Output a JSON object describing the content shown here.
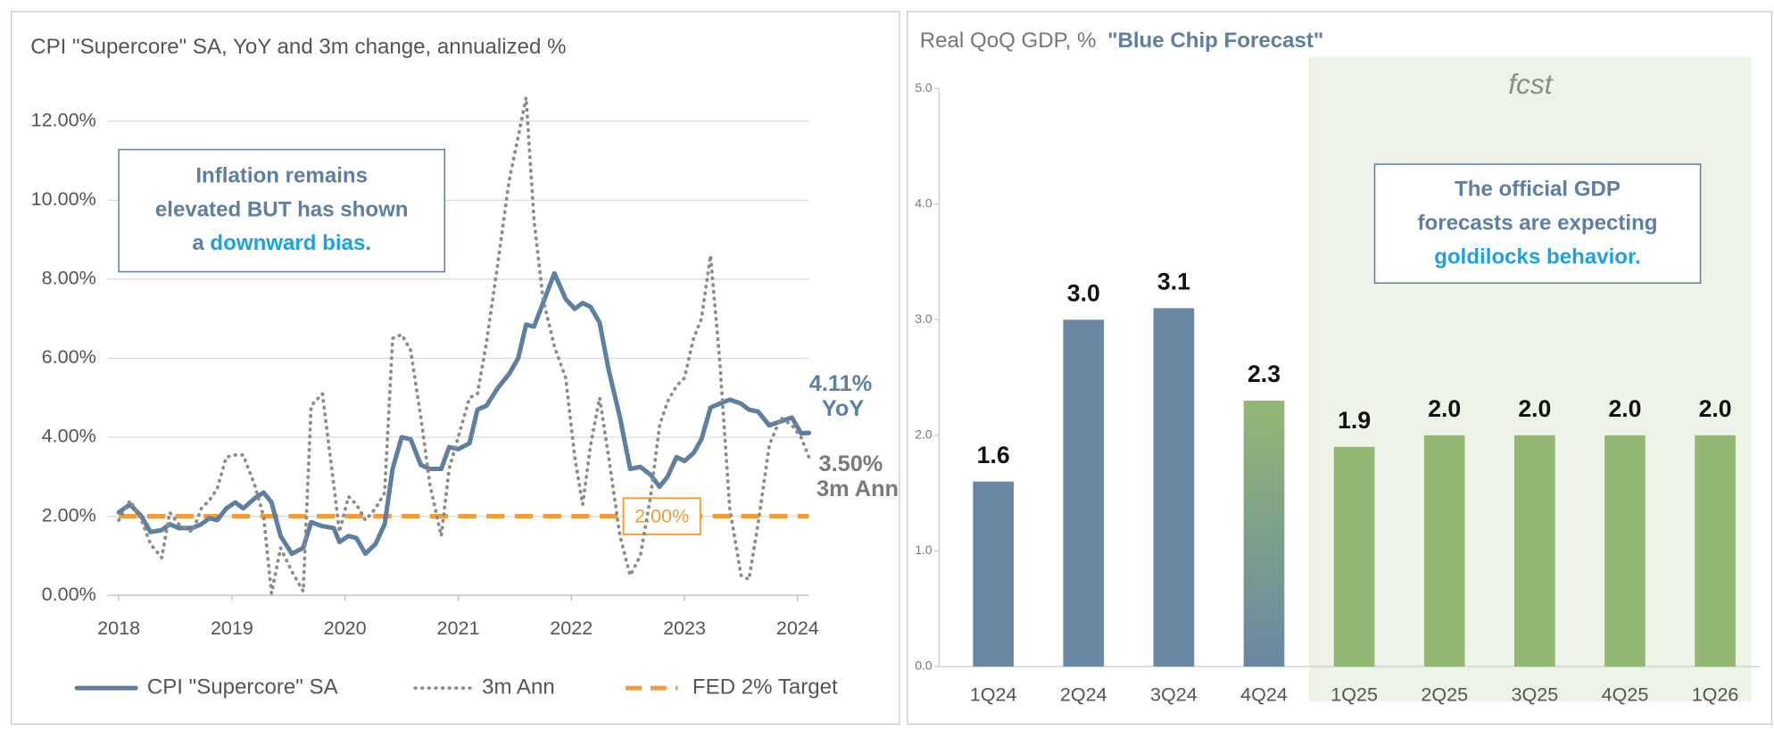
{
  "chart_data": [
    {
      "type": "line",
      "title": "CPI \"Supercore\" SA, YoY and 3m change, annualized %",
      "x": [
        2018.0,
        2018.1,
        2018.2,
        2018.28,
        2018.38,
        2018.45,
        2018.53,
        2018.65,
        2018.73,
        2018.8,
        2018.87,
        2018.95,
        2019.03,
        2019.1,
        2019.2,
        2019.28,
        2019.35,
        2019.43,
        2019.53,
        2019.63,
        2019.7,
        2019.8,
        2019.9,
        2019.95,
        2020.03,
        2020.1,
        2020.18,
        2020.27,
        2020.35,
        2020.42,
        2020.5,
        2020.58,
        2020.67,
        2020.75,
        2020.85,
        2020.92,
        2021.0,
        2021.1,
        2021.17,
        2021.25,
        2021.35,
        2021.45,
        2021.53,
        2021.6,
        2021.67,
        2021.75,
        2021.85,
        2021.95,
        2022.03,
        2022.1,
        2022.17,
        2022.25,
        2022.33,
        2022.43,
        2022.52,
        2022.61,
        2022.7,
        2022.78,
        2022.85,
        2022.93,
        2023.0,
        2023.08,
        2023.15,
        2023.23,
        2023.31,
        2023.4,
        2023.5,
        2023.57,
        2023.65,
        2023.75,
        2023.85,
        2023.95,
        2024.03,
        2024.1
      ],
      "series": [
        {
          "name": "CPI \"Supercore\" SA",
          "color": "#5f7fa0",
          "style": "solid",
          "end_label": "4.11%",
          "end_caption": "YoY",
          "values": [
            2.1,
            2.3,
            2.0,
            1.6,
            1.65,
            1.8,
            1.7,
            1.7,
            1.8,
            1.95,
            1.9,
            2.2,
            2.35,
            2.2,
            2.45,
            2.6,
            2.35,
            1.5,
            1.05,
            1.2,
            1.85,
            1.75,
            1.7,
            1.35,
            1.5,
            1.45,
            1.05,
            1.3,
            1.8,
            3.2,
            4.0,
            3.95,
            3.3,
            3.2,
            3.2,
            3.75,
            3.7,
            3.85,
            4.7,
            4.8,
            5.25,
            5.6,
            6.0,
            6.85,
            6.8,
            7.4,
            8.15,
            7.5,
            7.25,
            7.4,
            7.3,
            6.9,
            5.7,
            4.5,
            3.2,
            3.25,
            3.05,
            2.75,
            3.0,
            3.5,
            3.4,
            3.6,
            3.95,
            4.75,
            4.85,
            4.95,
            4.85,
            4.7,
            4.65,
            4.3,
            4.4,
            4.5,
            4.1,
            4.11
          ]
        },
        {
          "name": "3m Ann",
          "color": "#8c8c8c",
          "style": "dotted",
          "end_label": "3.50%",
          "end_caption": "3m Ann",
          "values": [
            1.9,
            2.4,
            1.9,
            1.3,
            0.95,
            2.1,
            1.8,
            1.6,
            2.2,
            2.4,
            2.7,
            3.5,
            3.55,
            3.55,
            2.8,
            2.0,
            0.05,
            1.2,
            0.6,
            0.1,
            4.8,
            5.1,
            2.8,
            1.6,
            2.5,
            2.3,
            1.9,
            2.2,
            2.6,
            6.5,
            6.6,
            6.2,
            4.5,
            2.8,
            1.5,
            3.2,
            4.0,
            5.0,
            5.1,
            6.4,
            8.4,
            10.5,
            11.6,
            12.6,
            9.5,
            7.5,
            6.3,
            5.5,
            3.5,
            2.3,
            3.8,
            5.0,
            3.5,
            1.5,
            0.5,
            1.0,
            2.5,
            4.3,
            4.9,
            5.3,
            5.5,
            6.5,
            7.0,
            8.6,
            6.0,
            2.2,
            0.5,
            0.4,
            1.8,
            3.8,
            4.5,
            4.3,
            4.0,
            3.5
          ]
        }
      ],
      "target": {
        "name": "FED 2% Target",
        "value": 2,
        "label": "2.00%",
        "color": "#f39c3a"
      },
      "xlim": [
        2018,
        2024.2
      ],
      "xticks": [
        2018,
        2019,
        2020,
        2021,
        2022,
        2023,
        2024
      ],
      "ylim": [
        0,
        12.8
      ],
      "yticks": [
        {
          "value": 0,
          "label": "0.00%"
        },
        {
          "value": 2,
          "label": "2.00%"
        },
        {
          "value": 4,
          "label": "4.00%"
        },
        {
          "value": 6,
          "label": "6.00%"
        },
        {
          "value": 8,
          "label": "8.00%"
        },
        {
          "value": 10,
          "label": "10.00%"
        },
        {
          "value": 12,
          "label": "12.00%"
        }
      ],
      "grid": true,
      "annotation": {
        "lines": [
          "Inflation remains",
          "elevated BUT has shown"
        ],
        "last_line": "a ",
        "highlight": "downward bias."
      }
    },
    {
      "type": "bar",
      "title": "Real QoQ GDP, %",
      "subtitle": "\"Blue Chip Forecast\"",
      "categories": [
        "1Q24",
        "2Q24",
        "3Q24",
        "4Q24",
        "1Q25",
        "2Q25",
        "3Q25",
        "4Q25",
        "1Q26"
      ],
      "values": [
        1.6,
        3.0,
        3.1,
        2.3,
        1.9,
        2.0,
        2.0,
        2.0,
        2.0
      ],
      "value_labels": [
        "1.6",
        "3.0",
        "3.1",
        "2.3",
        "1.9",
        "2.0",
        "2.0",
        "2.0",
        "2.0"
      ],
      "colors": [
        "#6a87a3",
        "#6a87a3",
        "#6a87a3",
        "#93b874",
        "#93b874",
        "#93b874",
        "#93b874",
        "#93b874",
        "#93b874"
      ],
      "gradient": {
        "index": 3,
        "bottom": "#6a87a3"
      },
      "ylim": [
        0,
        5
      ],
      "yticks": [
        {
          "value": 0,
          "label": "0.0"
        },
        {
          "value": 1,
          "label": "1.0"
        },
        {
          "value": 2,
          "label": "2.0"
        },
        {
          "value": 3,
          "label": "3.0"
        },
        {
          "value": 4,
          "label": "4.0"
        },
        {
          "value": 5,
          "label": "5.0"
        }
      ],
      "forecast_region": {
        "label": "fcst",
        "from": "1Q25",
        "color": "#eef3e8"
      },
      "annotation": {
        "lines": [
          "The official GDP",
          "forecasts are expecting"
        ],
        "highlight": "goldilocks behavior."
      }
    }
  ]
}
